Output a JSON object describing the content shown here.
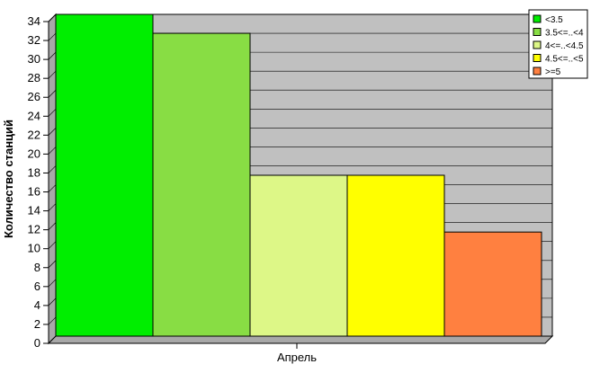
{
  "chart_data": {
    "type": "bar",
    "title": "",
    "xlabel": "",
    "ylabel": "Количество станций",
    "categories": [
      "Апрель"
    ],
    "series": [
      {
        "name": "<3.5",
        "values": [
          34
        ],
        "color": "#00ee00"
      },
      {
        "name": "3.5<=..<4",
        "values": [
          32
        ],
        "color": "#88dd44"
      },
      {
        "name": "4<=..<4.5",
        "values": [
          17
        ],
        "color": "#ddf787"
      },
      {
        "name": "4.5<=..<5",
        "values": [
          17
        ],
        "color": "#ffff00"
      },
      {
        "name": ">=5",
        "values": [
          11
        ],
        "color": "#ff8040"
      }
    ],
    "ylim": [
      0,
      34
    ],
    "yticks": [
      0,
      2,
      4,
      6,
      8,
      10,
      12,
      14,
      16,
      18,
      20,
      22,
      24,
      26,
      28,
      30,
      32,
      34
    ],
    "grid": true,
    "legend_position": "top-right",
    "plot_background": "#c0c0c0"
  }
}
